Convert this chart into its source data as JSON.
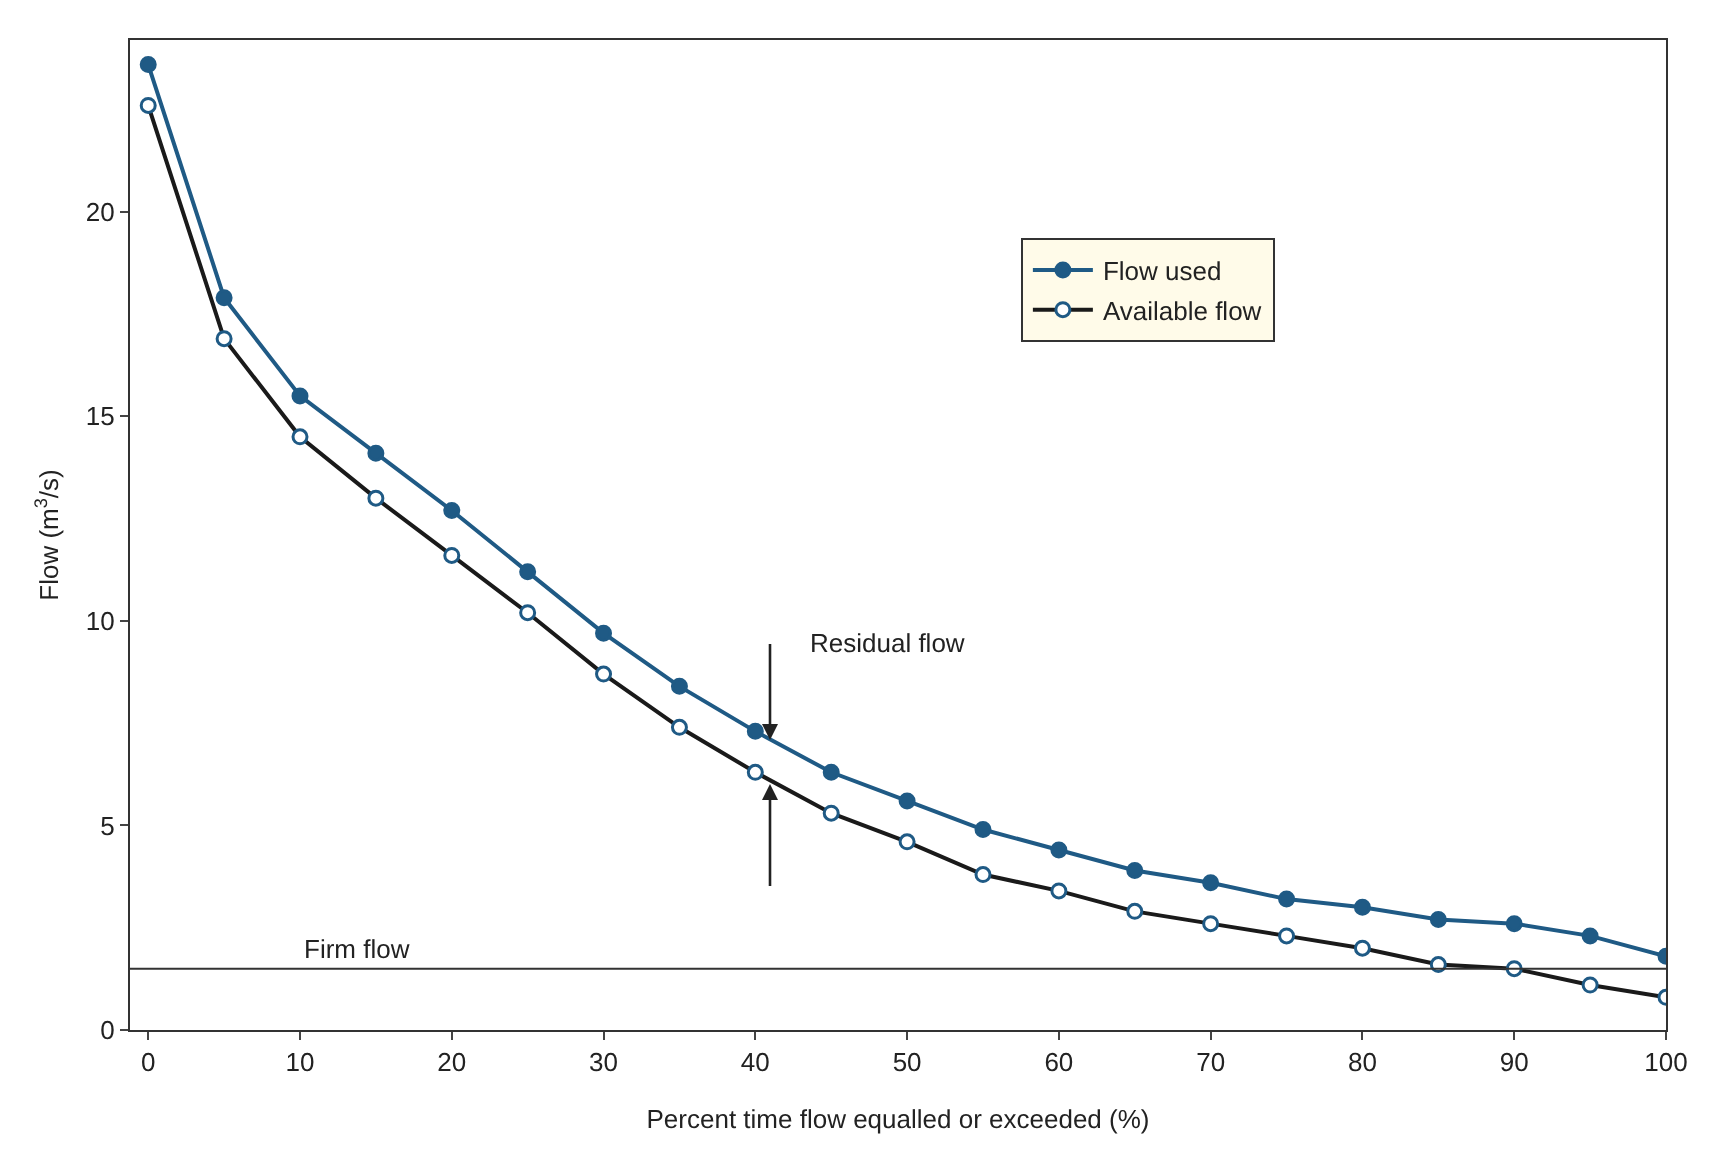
{
  "chart_data": {
    "type": "line",
    "xlabel": "Percent time flow equalled or exceeded (%)",
    "ylabel": "Flow (m$^{3}$/s)",
    "x": [
      0,
      5,
      10,
      15,
      20,
      25,
      30,
      35,
      40,
      45,
      50,
      55,
      60,
      65,
      70,
      75,
      80,
      85,
      90,
      95,
      100
    ],
    "series": [
      {
        "name": "Flow used",
        "color": "#1f5a85",
        "marker": "circle",
        "values": [
          23.6,
          17.9,
          15.5,
          14.1,
          12.7,
          11.2,
          9.7,
          8.4,
          7.3,
          6.3,
          5.6,
          4.9,
          4.4,
          3.9,
          3.6,
          3.2,
          3.0,
          2.7,
          2.6,
          2.3,
          1.8
        ]
      },
      {
        "name": "Available flow",
        "color": "#1a1a1a",
        "marker": "circle-open",
        "values": [
          22.6,
          16.9,
          14.5,
          13.0,
          11.6,
          10.2,
          8.7,
          7.4,
          6.3,
          5.3,
          4.6,
          3.8,
          3.4,
          2.9,
          2.6,
          2.3,
          2.0,
          1.6,
          1.5,
          1.1,
          0.8
        ]
      }
    ],
    "xlim": [
      -1.2,
      100
    ],
    "xticks": [
      0,
      10,
      20,
      30,
      40,
      50,
      60,
      70,
      80,
      90,
      100
    ],
    "ylim": [
      0,
      24.2
    ],
    "yticks": [
      0,
      5,
      10,
      15,
      20
    ],
    "ref_lines": [
      {
        "axis": "y",
        "value": 1.5,
        "label": "Firm flow",
        "color": "#333333"
      }
    ],
    "annotations": [
      "Residual flow"
    ],
    "grid": false,
    "legend": "top right"
  }
}
